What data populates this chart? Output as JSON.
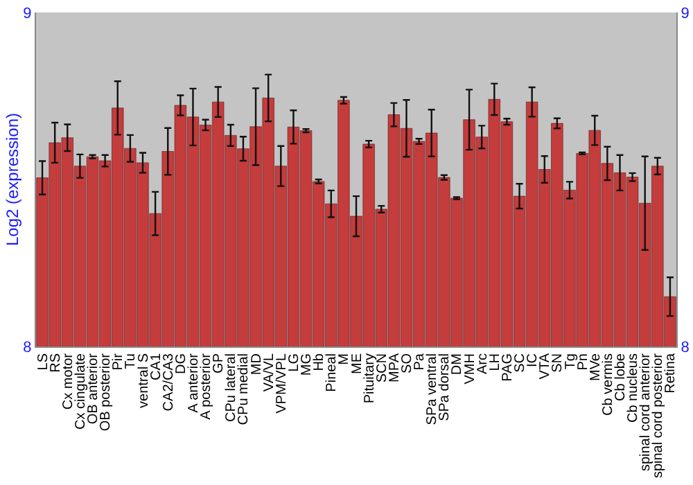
{
  "chart_data": {
    "type": "bar",
    "ylabel": "Log2 (expression)",
    "categories": [
      "LS",
      "RS",
      "Cx motor",
      "Cx cingulate",
      "OB anterior",
      "OB posterior",
      "Pir",
      "Tu",
      "ventral S",
      "CA1",
      "CA2/CA3",
      "DG",
      "A anterior",
      "A posterior",
      "GP",
      "CPu lateral",
      "CPu medial",
      "MD",
      "VA/VL",
      "VPM/VPL",
      "LG",
      "MG",
      "Hb",
      "Pineal",
      "M",
      "ME",
      "Pituitary",
      "SCN",
      "MPA",
      "SO",
      "Pa",
      "SPa ventral",
      "SPa dorsal",
      "DM",
      "VMH",
      "Arc",
      "LH",
      "PAG",
      "SC",
      "IC",
      "VTA",
      "SN",
      "Tg",
      "Pn",
      "MVe",
      "Cb vermis",
      "Cb lobe",
      "Cb nucleus",
      "spinal cord anterior",
      "spinal cord posterior",
      "Retina"
    ],
    "values": [
      8.505,
      8.61,
      8.625,
      8.54,
      8.568,
      8.556,
      8.714,
      8.593,
      8.55,
      8.398,
      8.584,
      8.722,
      8.687,
      8.663,
      8.732,
      8.632,
      8.592,
      8.658,
      8.744,
      8.54,
      8.657,
      8.646,
      8.494,
      8.427,
      8.737,
      8.39,
      8.606,
      8.411,
      8.694,
      8.653,
      8.614,
      8.639,
      8.506,
      8.444,
      8.679,
      8.627,
      8.74,
      8.673,
      8.45,
      8.732,
      8.53,
      8.668,
      8.468,
      8.578,
      8.647,
      8.548,
      8.52,
      8.507,
      8.429,
      8.54,
      8.149
    ],
    "errors": [
      0.05,
      0.06,
      0.04,
      0.035,
      0.005,
      0.017,
      0.08,
      0.04,
      0.03,
      0.065,
      0.07,
      0.03,
      0.085,
      0.016,
      0.045,
      0.032,
      0.036,
      0.115,
      0.07,
      0.06,
      0.05,
      0.005,
      0.006,
      0.04,
      0.01,
      0.06,
      0.01,
      0.01,
      0.035,
      0.085,
      0.008,
      0.07,
      0.007,
      0.003,
      0.09,
      0.034,
      0.047,
      0.009,
      0.037,
      0.044,
      0.04,
      0.015,
      0.025,
      0.003,
      0.044,
      0.05,
      0.053,
      0.012,
      0.14,
      0.025,
      0.058
    ],
    "color": "#c43c3c",
    "ylim": [
      8,
      9
    ],
    "yticks": [
      8,
      9
    ],
    "y2lim": [
      8,
      9
    ],
    "y2ticks": [
      8,
      9
    ]
  }
}
